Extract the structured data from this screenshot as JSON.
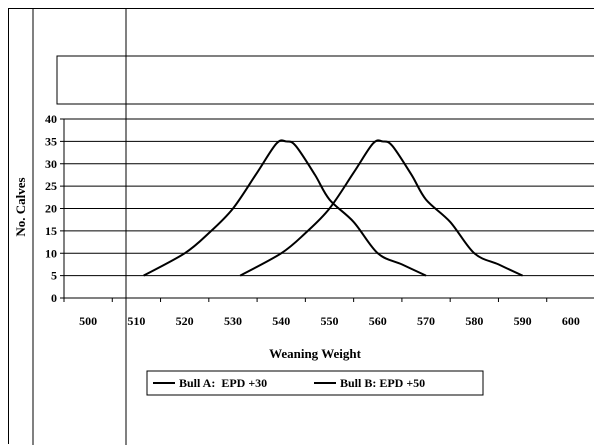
{
  "chart_data": {
    "type": "line",
    "title": "",
    "xlabel": "Weaning Weight",
    "ylabel": "No. Calves",
    "xlim": [
      495,
      605
    ],
    "ylim": [
      0,
      40
    ],
    "x_ticks": [
      500,
      510,
      520,
      530,
      540,
      550,
      560,
      570,
      580,
      590,
      600
    ],
    "y_ticks": [
      0,
      5,
      10,
      15,
      20,
      25,
      30,
      35,
      40
    ],
    "grid": "horizontal",
    "legend_position": "bottom",
    "series": [
      {
        "name": "Bull A:  EPD +30",
        "color": "#000000",
        "points": [
          [
            511.5,
            5
          ],
          [
            520,
            10
          ],
          [
            525,
            14.5
          ],
          [
            530,
            20
          ],
          [
            535,
            28
          ],
          [
            539,
            34.5
          ],
          [
            541,
            35
          ],
          [
            543,
            34
          ],
          [
            547,
            27.5
          ],
          [
            550,
            22
          ],
          [
            555,
            17
          ],
          [
            560,
            10
          ],
          [
            565,
            7.5
          ],
          [
            570,
            5
          ]
        ]
      },
      {
        "name": "Bull B: EPD +50",
        "color": "#000000",
        "points": [
          [
            531.5,
            5
          ],
          [
            540,
            10
          ],
          [
            545,
            14.5
          ],
          [
            550,
            20
          ],
          [
            555,
            28
          ],
          [
            559,
            34.5
          ],
          [
            561,
            35
          ],
          [
            563,
            34
          ],
          [
            567,
            27.5
          ],
          [
            570,
            22
          ],
          [
            575,
            17
          ],
          [
            580,
            10
          ],
          [
            585,
            7.5
          ],
          [
            590,
            5
          ]
        ]
      }
    ]
  }
}
